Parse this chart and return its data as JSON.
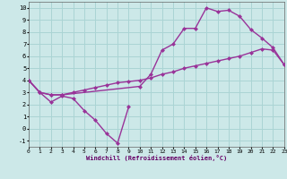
{
  "xlabel": "Windchill (Refroidissement éolien,°C)",
  "xlim": [
    0,
    23
  ],
  "ylim": [
    -1.5,
    10.5
  ],
  "xticks": [
    0,
    1,
    2,
    3,
    4,
    5,
    6,
    7,
    8,
    9,
    10,
    11,
    12,
    13,
    14,
    15,
    16,
    17,
    18,
    19,
    20,
    21,
    22,
    23
  ],
  "yticks": [
    -1,
    0,
    1,
    2,
    3,
    4,
    5,
    6,
    7,
    8,
    9,
    10
  ],
  "bg_color": "#cce8e8",
  "grid_color": "#aad4d4",
  "line_color": "#993399",
  "curve1_x": [
    0,
    1,
    2,
    3,
    4,
    5,
    6,
    7,
    8,
    9
  ],
  "curve1_y": [
    4.0,
    3.0,
    2.2,
    2.7,
    2.5,
    1.5,
    0.7,
    -0.4,
    -1.2,
    1.8
  ],
  "curve2_x": [
    0,
    1,
    2,
    3,
    10,
    11,
    12,
    13,
    14,
    15,
    16,
    17,
    18,
    19,
    20,
    21,
    22,
    23
  ],
  "curve2_y": [
    4.0,
    3.0,
    2.8,
    2.8,
    3.5,
    4.5,
    6.5,
    7.0,
    8.3,
    8.3,
    10.0,
    9.7,
    9.8,
    9.3,
    8.2,
    7.5,
    6.7,
    5.3
  ],
  "curve3_x": [
    0,
    1,
    2,
    3,
    4,
    5,
    6,
    7,
    8,
    9,
    10,
    11,
    12,
    13,
    14,
    15,
    16,
    17,
    18,
    19,
    20,
    21,
    22,
    23
  ],
  "curve3_y": [
    4.0,
    3.0,
    2.8,
    2.8,
    3.0,
    3.2,
    3.4,
    3.6,
    3.8,
    3.9,
    4.0,
    4.2,
    4.5,
    4.7,
    5.0,
    5.2,
    5.4,
    5.6,
    5.8,
    6.0,
    6.3,
    6.6,
    6.5,
    5.3
  ],
  "marker": "D",
  "markersize": 2.5,
  "linewidth": 1.0
}
